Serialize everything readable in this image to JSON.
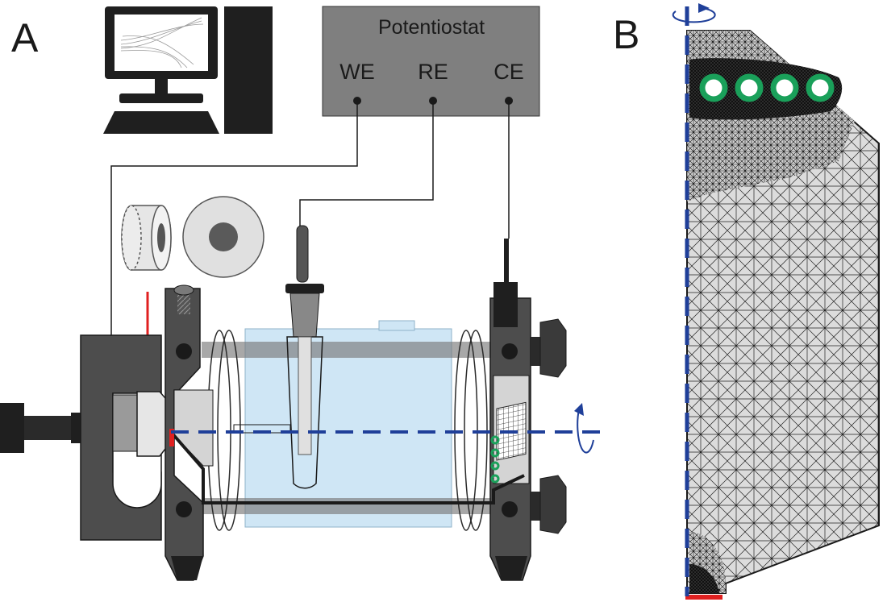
{
  "panels": {
    "a_label": "A",
    "b_label": "B"
  },
  "potentiostat": {
    "title": "Potentiostat",
    "terminals": [
      {
        "label": "WE"
      },
      {
        "label": "RE"
      },
      {
        "label": "CE"
      }
    ]
  },
  "colors": {
    "housing": "#4d4d4d",
    "housing_dark": "#3a3a3a",
    "potentiostat_box": "#7f7f7f",
    "electrolyte": "#cfe6f5",
    "axis_blue": "#1f3f99",
    "arrow_red": "#e02020",
    "coil_green": "#1aa05a",
    "mesh_fill": "#d9d9d9",
    "working_electrode_red": "#e02020"
  },
  "icons": [
    "computer-icon",
    "rotation-arrow-icon",
    "down-arrow-icon"
  ],
  "mesh": {
    "coil_turns": 4,
    "refinement_regions": [
      "around-coil",
      "at-electrode-corner"
    ]
  }
}
